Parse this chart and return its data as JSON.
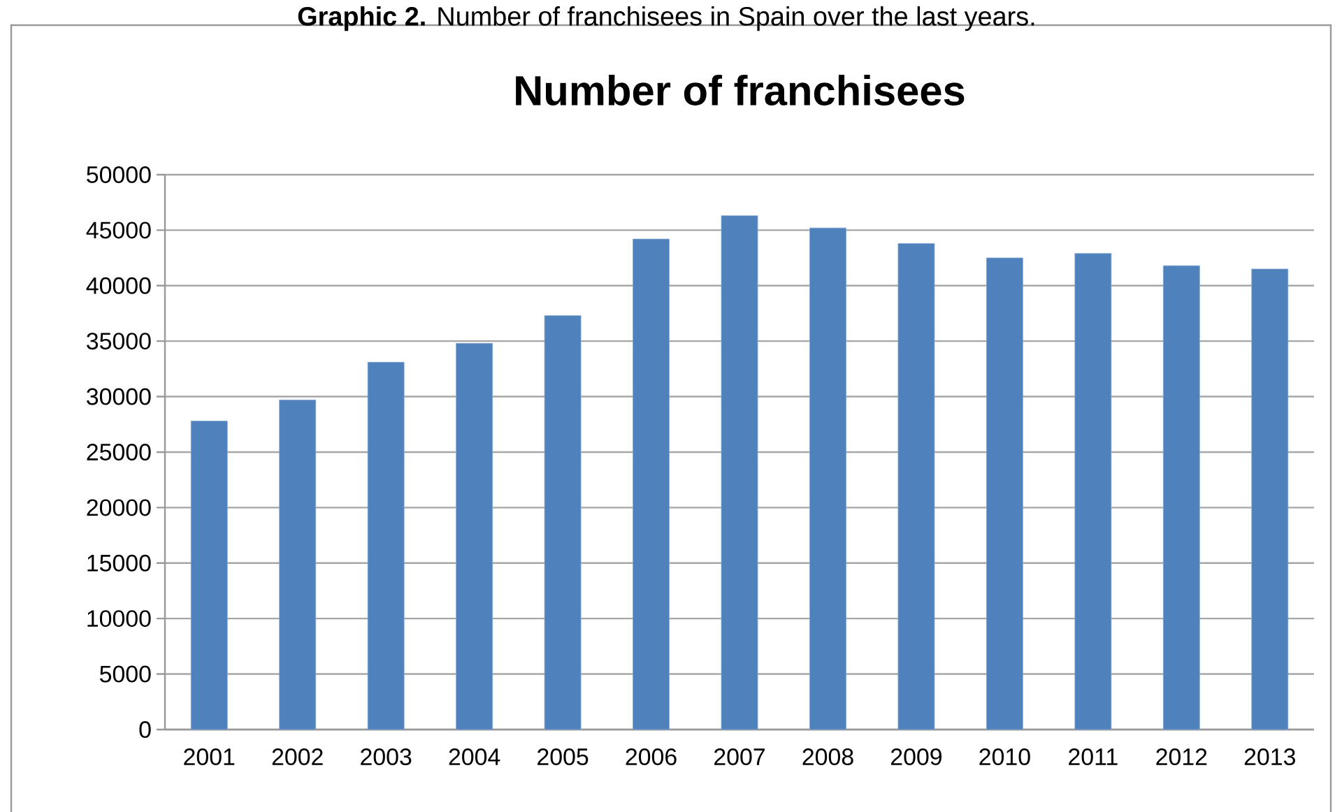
{
  "chart_data": {
    "type": "bar",
    "title": "Number of franchisees",
    "annotations": [
      "**Graphic 2.** Number of franchisees in Spain over the last years."
    ],
    "categories": [
      "2001",
      "2002",
      "2003",
      "2004",
      "2005",
      "2006",
      "2007",
      "2008",
      "2009",
      "2010",
      "2011",
      "2012",
      "2013"
    ],
    "values": [
      27800,
      29700,
      33100,
      34800,
      37300,
      44200,
      46300,
      45200,
      43800,
      42500,
      42900,
      41800,
      41500
    ],
    "color": "#4f81bd",
    "ylim": [
      0,
      50000
    ],
    "yticks": [
      0,
      5000,
      10000,
      15000,
      20000,
      25000,
      30000,
      35000,
      40000,
      45000,
      50000
    ],
    "grid": "y"
  }
}
